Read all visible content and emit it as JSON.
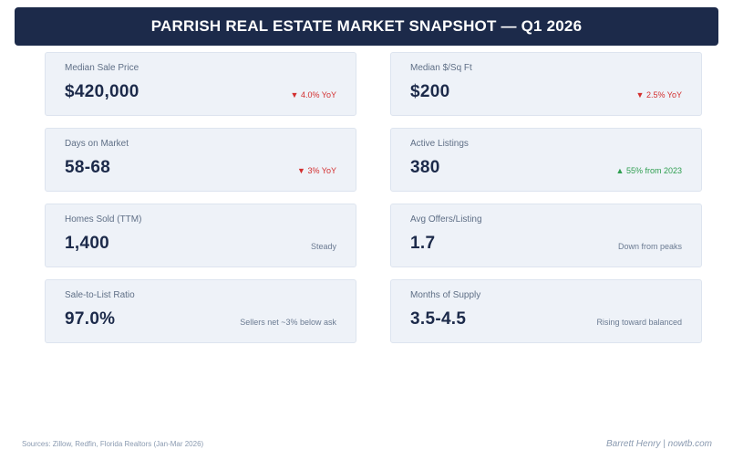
{
  "header": {
    "title": "PARRISH REAL ESTATE MARKET SNAPSHOT — Q1 2026"
  },
  "cards": [
    {
      "label": "Median Sale Price",
      "value": "$420,000",
      "change": "▼ 4.0% YoY",
      "change_color": "#d32f2f"
    },
    {
      "label": "Median $/Sq Ft",
      "value": "$200",
      "change": "▼ 2.5% YoY",
      "change_color": "#d32f2f"
    },
    {
      "label": "Days on Market",
      "value": "58-68",
      "change": "▼ 3% YoY",
      "change_color": "#d32f2f"
    },
    {
      "label": "Active Listings",
      "value": "380",
      "change": "▲ 55% from 2023",
      "change_color": "#2e9e4f"
    },
    {
      "label": "Homes Sold (TTM)",
      "value": "1,400",
      "change": "Steady",
      "change_color": "#6b7b92"
    },
    {
      "label": "Avg Offers/Listing",
      "value": "1.7",
      "change": "Down from peaks",
      "change_color": "#6b7b92"
    },
    {
      "label": "Sale-to-List Ratio",
      "value": "97.0%",
      "change": "Sellers net ~3% below ask",
      "change_color": "#6b7b92"
    },
    {
      "label": "Months of Supply",
      "value": "3.5-4.5",
      "change": "Rising toward balanced",
      "change_color": "#6b7b92"
    }
  ],
  "footer": {
    "source": "Sources: Zillow, Redfin, Florida Realtors (Jan-Mar 2026)",
    "credit": "Barrett Henry | nowtb.com"
  }
}
